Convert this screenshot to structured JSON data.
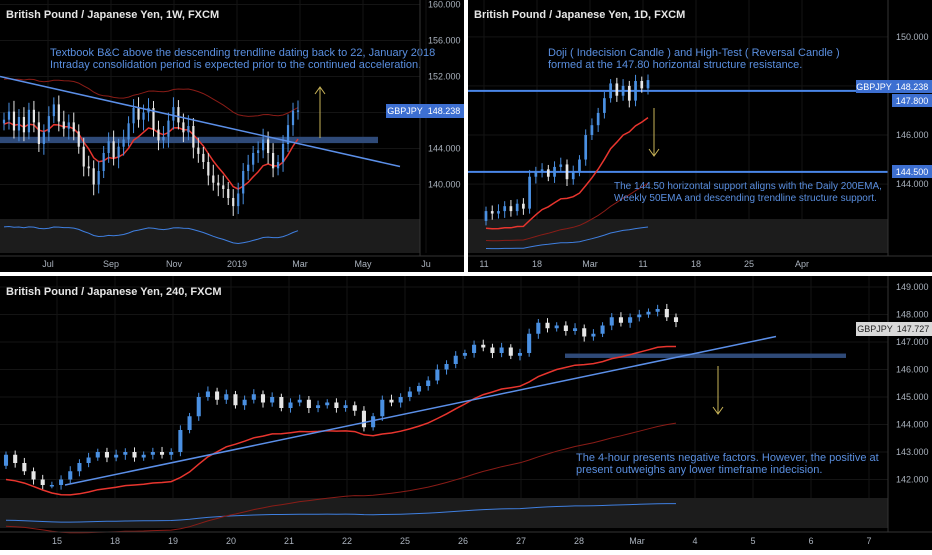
{
  "colors": {
    "background": "#000000",
    "panel_gap": "#ffffff",
    "bar_up": "#4a90e2",
    "bar_down": "#e6e6e6",
    "ema_fast": "#e8352e",
    "ema_slow": "#8a1c17",
    "trendline": "#5b8fe8",
    "support_zone": "#2f4a78",
    "annotation_text": "#5a8fe0",
    "arrow": "#c9b458",
    "price_tag": "#3d6fd1",
    "price_tag_gray": "#d9d9d9",
    "axis_text": "#aab2bd",
    "oscillator_bg": "#1c1c1c",
    "oscillator_line": "#3f7fe0"
  },
  "chart_data": [
    {
      "id": "weekly",
      "type": "candlestick",
      "title": "British Pound / Japanese Yen, 1W, FXCM",
      "y_ticks": [
        "160.000",
        "156.000",
        "152.000",
        "148.000",
        "144.000",
        "140.000"
      ],
      "x_ticks": [
        "Jul",
        "Sep",
        "Nov",
        "2019",
        "Mar",
        "May",
        "Ju"
      ],
      "ylim": [
        136.5,
        160.5
      ],
      "last_price_label": "148.238",
      "symbol_label": "GBPJPY",
      "annotation": "Textbook B&C above the descending trendline dating back to 22, January 2018\nIntraday consolidation period is expected prior to the continued acceleration.",
      "support_zone": [
        144.6,
        145.3
      ],
      "trendline": [
        [
          0,
          152.0
        ],
        [
          400,
          142.0
        ]
      ],
      "arrow": "up",
      "candles_close": [
        147.2,
        148.1,
        146.0,
        147.5,
        145.8,
        148.3,
        146.9,
        144.5,
        145.8,
        147.6,
        148.9,
        147.0,
        146.2,
        146.9,
        145.9,
        144.2,
        142.0,
        141.8,
        140.0,
        141.5,
        143.5,
        144.8,
        143.0,
        144.2,
        145.0,
        146.8,
        148.5,
        147.2,
        148.0,
        148.5,
        146.1,
        144.9,
        145.3,
        147.1,
        148.6,
        146.9,
        145.8,
        146.5,
        144.1,
        143.4,
        142.5,
        141.0,
        140.2,
        139.9,
        139.5,
        138.5,
        137.6,
        139.0,
        141.5,
        142.2,
        143.5,
        143.8,
        145.0,
        143.5,
        141.8,
        142.5,
        144.5,
        146.6,
        148.2,
        148.238
      ]
    },
    {
      "id": "daily",
      "type": "candlestick",
      "title": "British Pound / Japanese Yen, 1D, FXCM",
      "y_ticks": [
        "150.000",
        "148.000",
        "146.000",
        "144.000"
      ],
      "x_ticks": [
        "11",
        "18",
        "Mar",
        "11",
        "18",
        "25",
        "Apr"
      ],
      "ylim": [
        142.7,
        151.5
      ],
      "last_price_label": "148.238",
      "symbol_label": "GBPJPY",
      "resistance_label": "147.800",
      "support_label": "144.500",
      "annotation_top": "Doji ( Indecision Candle ) and High-Test ( Reversal Candle )\nformed at the 147.80 horizontal structure resistance.",
      "annotation_bottom": "The 144.50 horizontal support aligns with the Daily 200EMA,\nWeekly 50EMA and descending trendline structure support.",
      "resistance": 147.8,
      "support": 144.5,
      "arrow": "down",
      "candles_close": [
        142.9,
        142.8,
        142.9,
        143.1,
        142.9,
        143.2,
        143.0,
        144.3,
        144.5,
        144.6,
        144.3,
        144.7,
        144.8,
        144.2,
        144.5,
        145.0,
        146.0,
        146.4,
        146.9,
        147.5,
        148.1,
        147.6,
        148.0,
        147.4,
        148.2,
        147.9,
        148.238
      ]
    },
    {
      "id": "h4",
      "type": "candlestick",
      "title": "British Pound / Japanese Yen, 240, FXCM",
      "y_ticks": [
        "149.000",
        "148.000",
        "147.000",
        "146.000",
        "145.000",
        "144.000",
        "143.000",
        "142.000"
      ],
      "x_ticks": [
        "15",
        "18",
        "19",
        "20",
        "21",
        "22",
        "25",
        "26",
        "27",
        "28",
        "Mar",
        "4",
        "5",
        "6",
        "7"
      ],
      "ylim": [
        141.4,
        149.4
      ],
      "last_price_label": "147.727",
      "symbol_label": "GBPJPY",
      "annotation": "The 4-hour presents negative factors. However, the positive at\npresent outweighs any lower timeframe indecision.",
      "support_zone": [
        146.42,
        146.58
      ],
      "trendline": [
        [
          65,
          141.8
        ],
        [
          776,
          147.2
        ]
      ],
      "arrow": "down",
      "candles_close": [
        142.9,
        142.6,
        142.3,
        142.0,
        141.8,
        141.8,
        142.0,
        142.3,
        142.6,
        142.8,
        143.0,
        142.8,
        142.9,
        143.0,
        142.8,
        142.9,
        143.0,
        142.9,
        143.0,
        143.8,
        144.3,
        145.0,
        145.2,
        144.9,
        145.1,
        144.7,
        144.9,
        145.1,
        144.8,
        145.0,
        144.6,
        144.8,
        144.9,
        144.6,
        144.7,
        144.8,
        144.6,
        144.7,
        144.5,
        143.9,
        144.3,
        144.9,
        144.8,
        145.0,
        145.2,
        145.4,
        145.6,
        146.0,
        146.2,
        146.5,
        146.6,
        146.9,
        146.8,
        146.6,
        146.8,
        146.5,
        146.6,
        147.3,
        147.7,
        147.5,
        147.6,
        147.4,
        147.5,
        147.2,
        147.3,
        147.6,
        147.9,
        147.7,
        147.9,
        148.0,
        148.1,
        148.2,
        147.9,
        147.727
      ]
    }
  ]
}
